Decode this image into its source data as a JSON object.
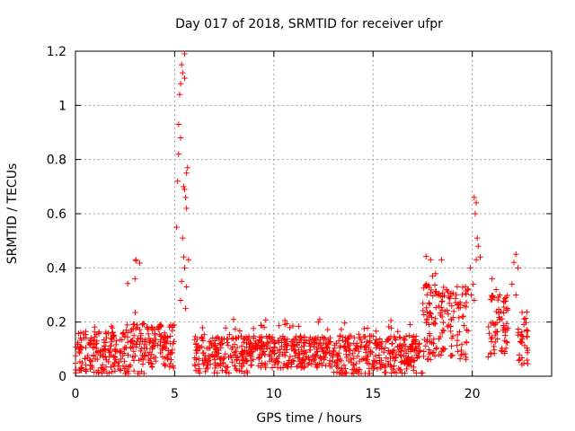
{
  "chart_data": {
    "type": "scatter",
    "title": "Day 017 of 2018, SRMTID for receiver ufpr",
    "xlabel": "GPS time / hours",
    "ylabel": "SRMTID / TECUs",
    "xlim": [
      0,
      24
    ],
    "ylim": [
      0,
      1.2
    ],
    "xticks": [
      "0",
      "5",
      "10",
      "15",
      "20"
    ],
    "xtick_values": [
      0,
      5,
      10,
      15,
      20
    ],
    "yticks": [
      "0",
      "0.2",
      "0.4",
      "0.6",
      "0.8",
      "1",
      "1.2"
    ],
    "ytick_values": [
      0,
      0.2,
      0.4,
      0.6,
      0.8,
      1.0,
      1.2
    ],
    "grid": true,
    "marker": "+",
    "color": "#ff0000",
    "series": [
      {
        "name": "SRMTID",
        "segments": [
          {
            "x_start": 0.0,
            "x_end": 2.5,
            "base": 0.09,
            "spread": 0.08,
            "peak": 0.2
          },
          {
            "x_start": 2.5,
            "x_end": 3.5,
            "base": 0.1,
            "spread": 0.1,
            "peak": 0.43
          },
          {
            "x_start": 3.5,
            "x_end": 5.0,
            "base": 0.11,
            "spread": 0.08,
            "peak": 0.2
          },
          {
            "x_start": 6.0,
            "x_end": 9.0,
            "base": 0.08,
            "spread": 0.07,
            "peak": 0.21
          },
          {
            "x_start": 9.0,
            "x_end": 13.0,
            "base": 0.09,
            "spread": 0.06,
            "peak": 0.22
          },
          {
            "x_start": 13.0,
            "x_end": 15.0,
            "base": 0.07,
            "spread": 0.08,
            "peak": 0.2
          },
          {
            "x_start": 15.0,
            "x_end": 17.5,
            "base": 0.08,
            "spread": 0.07,
            "peak": 0.23
          },
          {
            "x_start": 17.5,
            "x_end": 19.8,
            "base": 0.2,
            "spread": 0.14,
            "peak": 0.45
          },
          {
            "x_start": 20.8,
            "x_end": 21.8,
            "base": 0.18,
            "spread": 0.12,
            "peak": 0.35
          },
          {
            "x_start": 22.3,
            "x_end": 22.8,
            "base": 0.13,
            "spread": 0.09,
            "peak": 0.25
          }
        ],
        "peaks": [
          {
            "x": 5.1,
            "y": 0.55
          },
          {
            "x": 5.15,
            "y": 0.72
          },
          {
            "x": 5.2,
            "y": 0.82
          },
          {
            "x": 5.2,
            "y": 0.93
          },
          {
            "x": 5.25,
            "y": 1.04
          },
          {
            "x": 5.3,
            "y": 1.08
          },
          {
            "x": 5.35,
            "y": 1.15
          },
          {
            "x": 5.4,
            "y": 1.12
          },
          {
            "x": 5.5,
            "y": 1.19
          },
          {
            "x": 5.5,
            "y": 1.1
          },
          {
            "x": 5.3,
            "y": 0.88
          },
          {
            "x": 5.45,
            "y": 0.7
          },
          {
            "x": 5.55,
            "y": 0.66
          },
          {
            "x": 5.6,
            "y": 0.62
          },
          {
            "x": 5.6,
            "y": 0.75
          },
          {
            "x": 5.65,
            "y": 0.77
          },
          {
            "x": 5.5,
            "y": 0.69
          },
          {
            "x": 5.4,
            "y": 0.51
          },
          {
            "x": 5.45,
            "y": 0.44
          },
          {
            "x": 5.5,
            "y": 0.4
          },
          {
            "x": 5.35,
            "y": 0.35
          },
          {
            "x": 5.6,
            "y": 0.33
          },
          {
            "x": 5.3,
            "y": 0.28
          },
          {
            "x": 5.55,
            "y": 0.25
          },
          {
            "x": 5.7,
            "y": 0.43
          },
          {
            "x": 3.05,
            "y": 0.43
          },
          {
            "x": 3.0,
            "y": 0.36
          },
          {
            "x": 20.1,
            "y": 0.66
          },
          {
            "x": 20.2,
            "y": 0.64
          },
          {
            "x": 20.15,
            "y": 0.6
          },
          {
            "x": 20.25,
            "y": 0.51
          },
          {
            "x": 20.3,
            "y": 0.48
          },
          {
            "x": 20.2,
            "y": 0.43
          },
          {
            "x": 20.4,
            "y": 0.44
          },
          {
            "x": 19.9,
            "y": 0.4
          },
          {
            "x": 20.05,
            "y": 0.34
          },
          {
            "x": 19.95,
            "y": 0.3
          },
          {
            "x": 20.1,
            "y": 0.28
          },
          {
            "x": 17.9,
            "y": 0.43
          },
          {
            "x": 18.0,
            "y": 0.37
          },
          {
            "x": 18.3,
            "y": 0.3
          },
          {
            "x": 22.2,
            "y": 0.45
          },
          {
            "x": 22.1,
            "y": 0.42
          },
          {
            "x": 22.3,
            "y": 0.4
          },
          {
            "x": 22.0,
            "y": 0.34
          },
          {
            "x": 22.2,
            "y": 0.3
          },
          {
            "x": 21.7,
            "y": 0.29
          },
          {
            "x": 21.0,
            "y": 0.36
          },
          {
            "x": 21.2,
            "y": 0.32
          },
          {
            "x": 19.6,
            "y": 0.26
          }
        ]
      }
    ]
  }
}
